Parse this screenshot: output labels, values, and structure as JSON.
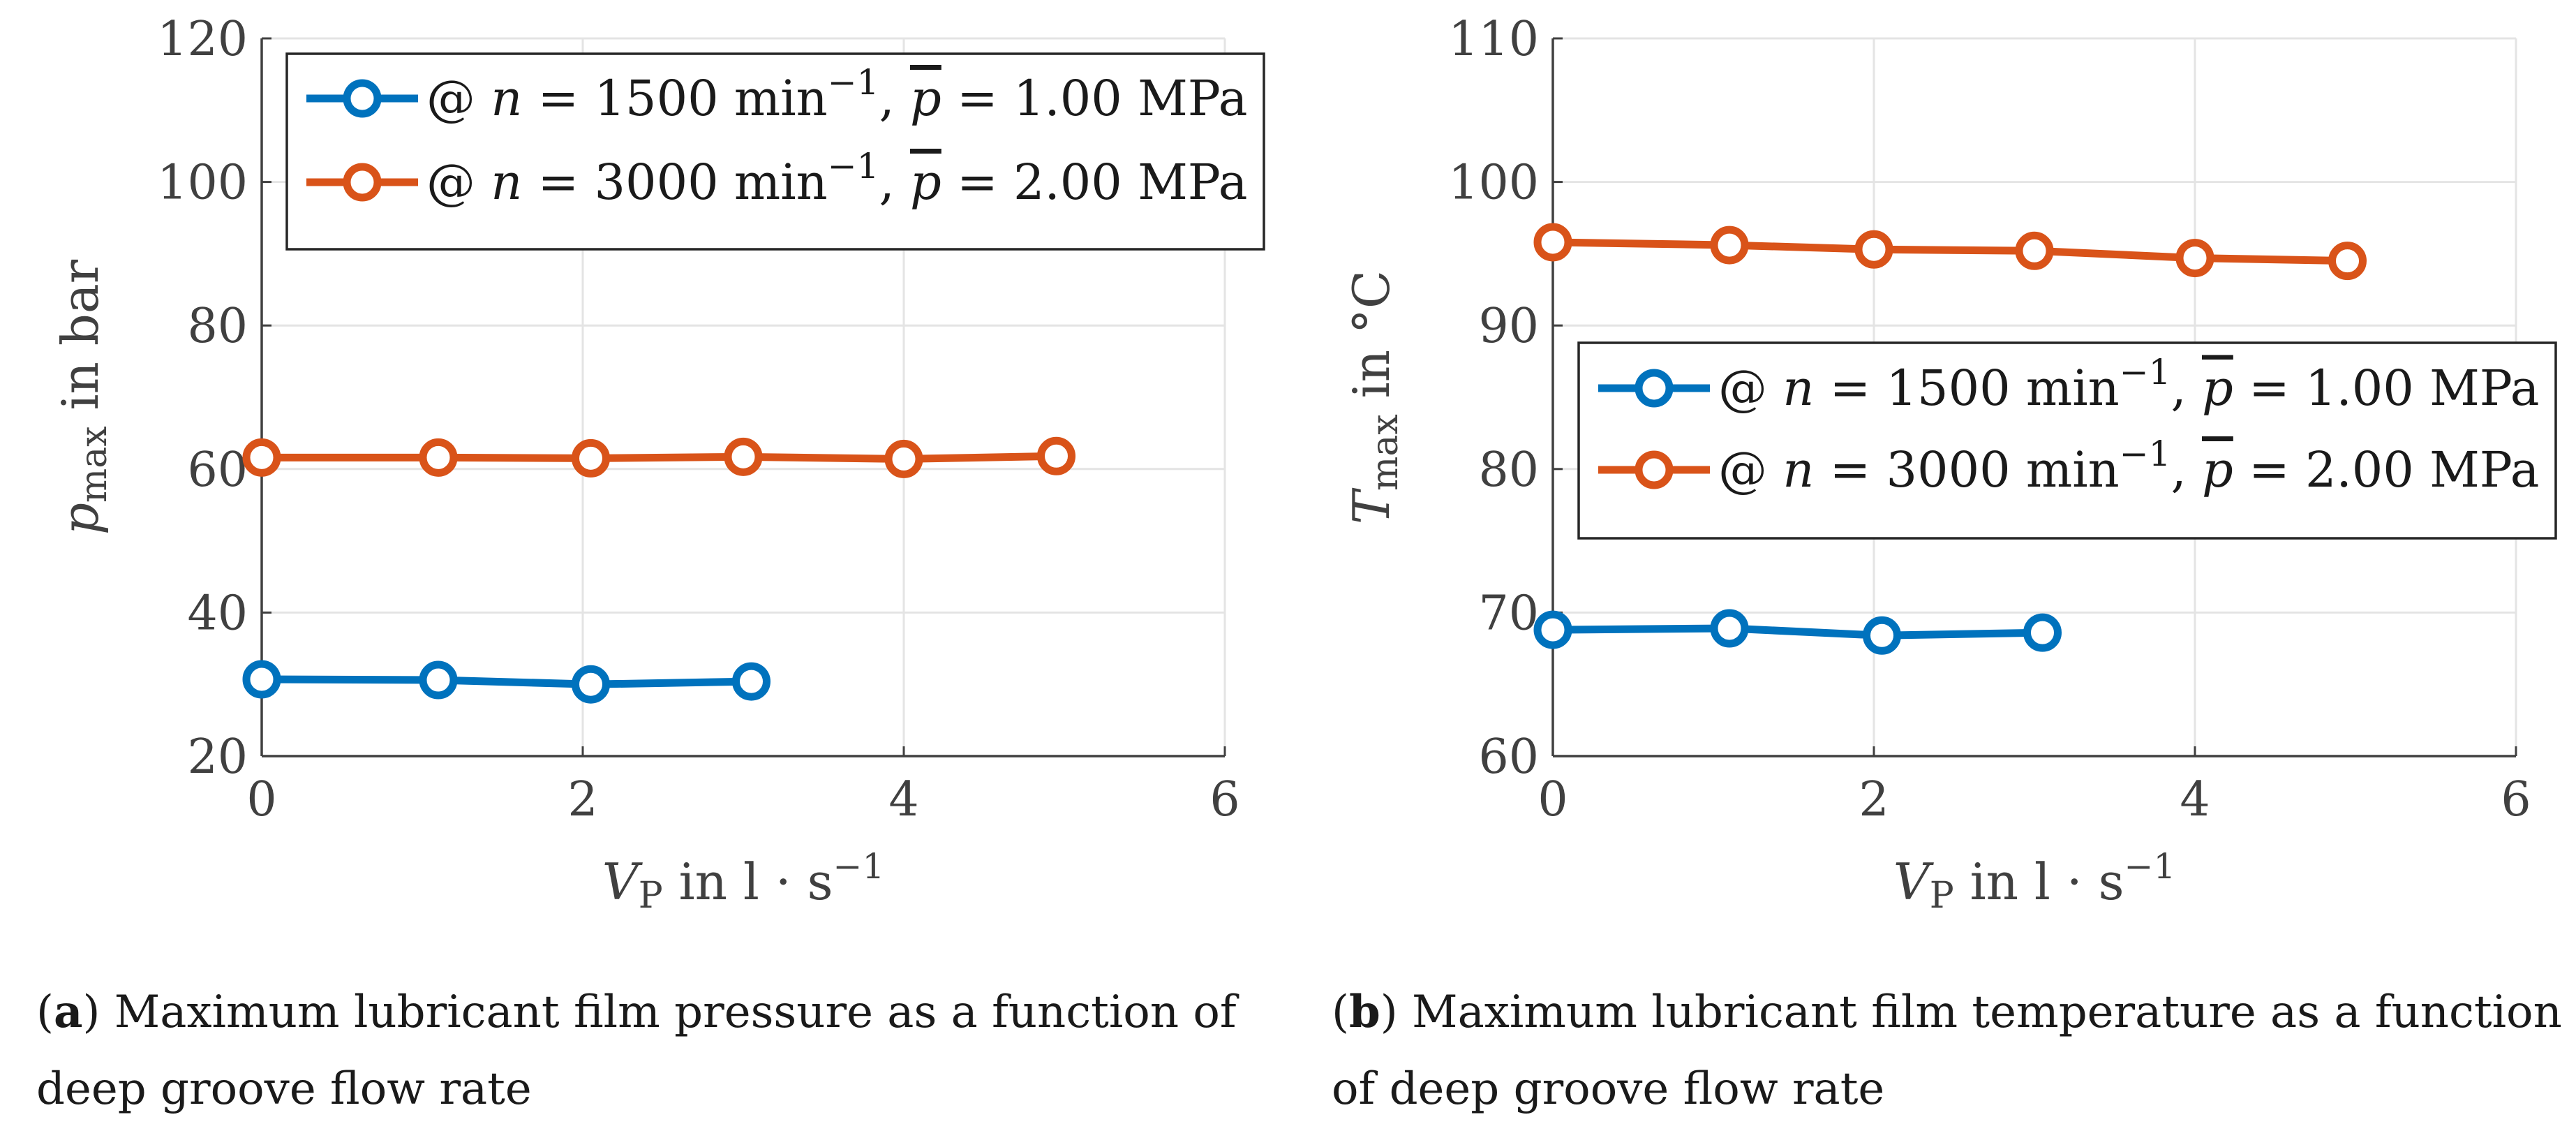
{
  "chart_data": [
    {
      "type": "line",
      "panel": "a",
      "title": "",
      "xlabel": {
        "main": "V",
        "sub": "P",
        "unit": " in l · s",
        "exp": "−1"
      },
      "ylabel": {
        "main": "p",
        "sub": "max",
        "unit": " in bar"
      },
      "xlim": [
        0,
        6
      ],
      "ylim": [
        20,
        120
      ],
      "xticks": [
        "0",
        "2",
        "4",
        "6"
      ],
      "yticks": [
        "20",
        "40",
        "60",
        "80",
        "100",
        "120"
      ],
      "legend_position": "top-left",
      "series": [
        {
          "name": "@ n = 1500 min⁻¹, p̄ = 1.00 MPa",
          "legend": {
            "pre": "@ ",
            "n": "n",
            "eq1": " = 1500 min",
            "exp": "−1",
            "mid": ", ",
            "p": "p",
            "eq2": " = 1.00 MPa"
          },
          "color": "#0072BD",
          "x": [
            0,
            1.1,
            2.05,
            3.05
          ],
          "y": [
            30.7,
            30.6,
            30.0,
            30.4
          ]
        },
        {
          "name": "@ n = 3000 min⁻¹, p̄ = 2.00 MPa",
          "legend": {
            "pre": "@ ",
            "n": "n",
            "eq1": " = 3000 min",
            "exp": "−1",
            "mid": ", ",
            "p": "p",
            "eq2": " = 2.00 MPa"
          },
          "color": "#D95319",
          "x": [
            0,
            1.1,
            2.05,
            3.0,
            4.0,
            4.95
          ],
          "y": [
            61.6,
            61.6,
            61.5,
            61.7,
            61.4,
            61.8
          ]
        }
      ]
    },
    {
      "type": "line",
      "panel": "b",
      "title": "",
      "xlabel": {
        "main": "V",
        "sub": "P",
        "unit": " in l · s",
        "exp": "−1"
      },
      "ylabel": {
        "main": "T",
        "sub": "max",
        "unit": " in °C"
      },
      "xlim": [
        0,
        6
      ],
      "ylim": [
        60,
        110
      ],
      "xticks": [
        "0",
        "2",
        "4",
        "6"
      ],
      "yticks": [
        "60",
        "70",
        "80",
        "90",
        "100",
        "110"
      ],
      "legend_position": "middle-right",
      "series": [
        {
          "name": "@ n = 1500 min⁻¹, p̄ = 1.00 MPa",
          "legend": {
            "pre": "@ ",
            "n": "n",
            "eq1": " = 1500 min",
            "exp": "−1",
            "mid": ", ",
            "p": "p",
            "eq2": " = 1.00 MPa"
          },
          "color": "#0072BD",
          "x": [
            0,
            1.1,
            2.05,
            3.05
          ],
          "y": [
            68.8,
            68.9,
            68.4,
            68.6
          ]
        },
        {
          "name": "@ n = 3000 min⁻¹, p̄ = 2.00 MPa",
          "legend": {
            "pre": "@ ",
            "n": "n",
            "eq1": " = 3000 min",
            "exp": "−1",
            "mid": ", ",
            "p": "p",
            "eq2": " = 2.00 MPa"
          },
          "color": "#D95319",
          "x": [
            0,
            1.1,
            2.0,
            3.0,
            4.0,
            4.95
          ],
          "y": [
            95.8,
            95.6,
            95.3,
            95.2,
            94.7,
            94.5
          ]
        }
      ]
    }
  ],
  "captions": [
    {
      "label": "a",
      "text": "Maximum lubricant film pressure as a function of deep groove flow rate"
    },
    {
      "label": "b",
      "text": "Maximum lubricant film temperature as a function of deep groove flow rate"
    }
  ]
}
